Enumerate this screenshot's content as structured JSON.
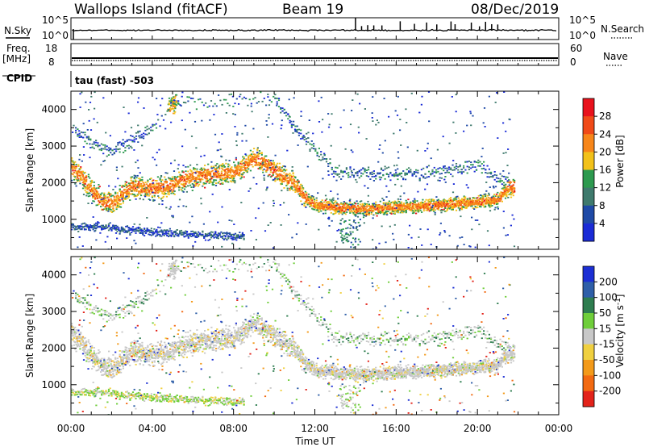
{
  "header": {
    "station": "Wallops Island (fitACF)",
    "beam": "Beam 19",
    "date": "08/Dec/2019"
  },
  "top_panels": {
    "nsky_label": "N.Sky",
    "nsearch_label": "N.Search",
    "noise_ticks_left": [
      "10^5",
      "10^0"
    ],
    "noise_ticks_right": [
      "10^5",
      "10^0"
    ],
    "freq_label": [
      "Freq.",
      "[MHz]"
    ],
    "freq_ticks": [
      "18",
      "8"
    ],
    "nave_label": "Nave",
    "nave_ticks": [
      "60",
      "0"
    ],
    "cpid_label": "CPID",
    "cpid_text": "tau (fast) -503"
  },
  "power_panel": {
    "ylabel": "Slant Range [km]",
    "yticks": [
      "4000",
      "3000",
      "2000",
      "1000"
    ],
    "colorbar_label": "Power [dB]",
    "colorbar_ticks": [
      "28",
      "24",
      "20",
      "16",
      "12",
      "8",
      "4"
    ],
    "colorbar_colors": [
      "#e8121c",
      "#f04a18",
      "#f7861a",
      "#f2c11a",
      "#2d9a4f",
      "#3f7a6d",
      "#1f4aa6",
      "#1a2bd6"
    ]
  },
  "velocity_panel": {
    "ylabel": "Slant Range [km]",
    "yticks": [
      "4000",
      "3000",
      "2000",
      "1000"
    ],
    "colorbar_label": "Velocity [m s^-1]",
    "colorbar_ticks": [
      "200",
      "100",
      "50",
      "15",
      "-15",
      "-50",
      "-100",
      "-200"
    ],
    "colorbar_colors": [
      "#1c2fd4",
      "#2f5fa8",
      "#2e7d4f",
      "#6fce3a",
      "#c8c8c8",
      "#f0d040",
      "#f39a1a",
      "#f26a12",
      "#e3231a"
    ]
  },
  "xaxis": {
    "xlabel": "Time UT",
    "xticks": [
      "00:00",
      "04:00",
      "08:00",
      "12:00",
      "16:00",
      "20:00",
      "00:00"
    ]
  },
  "chart_data": {
    "type": "heatmap",
    "title": "Wallops Island (fitACF)",
    "x": "Time UT (hours)",
    "xlim": [
      0,
      24
    ],
    "ylim": [
      180,
      4500
    ],
    "y_units": "km",
    "scatter_bands": [
      {
        "name": "main echo band",
        "points": [
          [
            0,
            2400
          ],
          [
            0.5,
            2200
          ],
          [
            1,
            1800
          ],
          [
            1.5,
            1500
          ],
          [
            2,
            1450
          ],
          [
            2.5,
            1700
          ],
          [
            3,
            1900
          ],
          [
            4,
            1850
          ],
          [
            5,
            1950
          ],
          [
            6,
            2200
          ],
          [
            7,
            2250
          ],
          [
            8,
            2300
          ],
          [
            9,
            2700
          ],
          [
            10,
            2350
          ],
          [
            10.5,
            2150
          ],
          [
            11,
            2000
          ],
          [
            11.5,
            1600
          ],
          [
            12,
            1400
          ],
          [
            14,
            1300
          ],
          [
            16,
            1350
          ],
          [
            18,
            1400
          ],
          [
            20,
            1500
          ],
          [
            21,
            1550
          ],
          [
            21.5,
            1900
          ]
        ]
      },
      {
        "name": "near range band",
        "points": [
          [
            0,
            820
          ],
          [
            1,
            800
          ],
          [
            2,
            780
          ],
          [
            3,
            720
          ],
          [
            4,
            680
          ],
          [
            5,
            640
          ],
          [
            6,
            600
          ],
          [
            7,
            580
          ],
          [
            8,
            560
          ]
        ]
      },
      {
        "name": "far range band",
        "points": [
          [
            0.3,
            3400
          ],
          [
            1,
            3100
          ],
          [
            2,
            2900
          ],
          [
            3,
            3200
          ],
          [
            4.5,
            3700
          ],
          [
            5,
            4200
          ],
          [
            10,
            4300
          ],
          [
            11,
            3500
          ],
          [
            12,
            2900
          ],
          [
            13,
            2300
          ],
          [
            16,
            2250
          ],
          [
            18,
            2300
          ],
          [
            20,
            2500
          ],
          [
            21,
            2100
          ]
        ]
      }
    ],
    "noise_sky": "approx. 10^0.8, flat",
    "noise_search": "approx. 10^0.8 with spikes after 14:00",
    "frequency_mhz": 10,
    "nave": 11
  }
}
